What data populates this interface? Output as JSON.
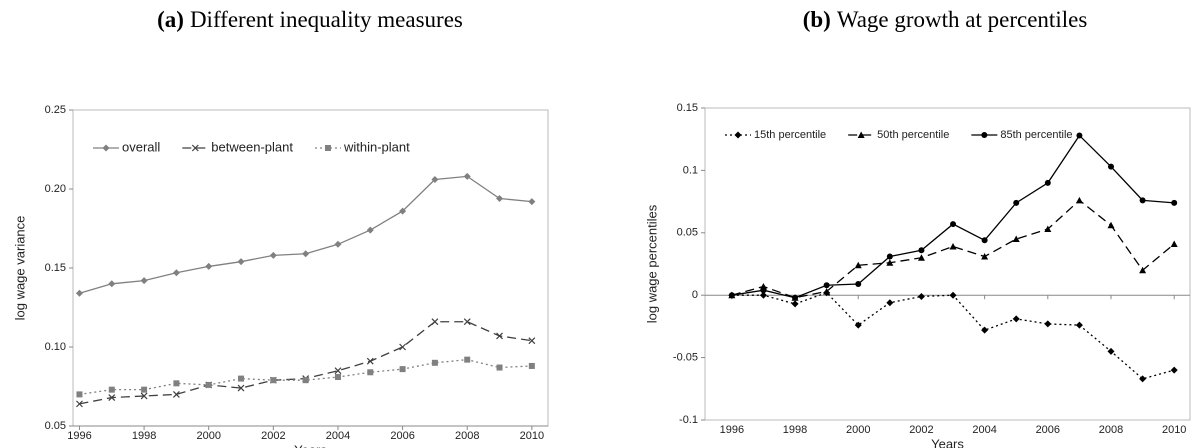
{
  "chart_data": [
    {
      "type": "line",
      "panel_label": "(a)",
      "title": "Different inequality measures",
      "xlabel": "Years",
      "ylabel": "log wage variance",
      "x": [
        1996,
        1997,
        1998,
        1999,
        2000,
        2001,
        2002,
        2003,
        2004,
        2005,
        2006,
        2007,
        2008,
        2009,
        2010
      ],
      "xlim": [
        1995.8,
        2010.5
      ],
      "xticks": [
        1996,
        1998,
        2000,
        2002,
        2004,
        2006,
        2008,
        2010
      ],
      "ylim": [
        0.05,
        0.25
      ],
      "yticks": [
        0.05,
        {
          "value": 0.1,
          "label": "0.10"
        },
        0.15,
        {
          "value": 0.2,
          "label": "0.20"
        },
        0.25
      ],
      "grid": false,
      "series": [
        {
          "name": "overall",
          "color": "#808080",
          "dash": "solid",
          "marker": "diamond",
          "values": [
            0.134,
            0.14,
            0.142,
            0.147,
            0.151,
            0.154,
            0.158,
            0.159,
            0.165,
            0.174,
            0.186,
            0.206,
            0.208,
            0.194,
            0.192
          ]
        },
        {
          "name": "between-plant",
          "color": "#404040",
          "dash": "dashed",
          "marker": "x",
          "values": [
            0.064,
            0.068,
            0.069,
            0.07,
            0.076,
            0.074,
            0.079,
            0.08,
            0.085,
            0.091,
            0.1,
            0.116,
            0.116,
            0.107,
            0.104
          ]
        },
        {
          "name": "within-plant",
          "color": "#808080",
          "dash": "dotted",
          "marker": "square",
          "values": [
            0.07,
            0.073,
            0.073,
            0.077,
            0.076,
            0.08,
            0.079,
            0.079,
            0.081,
            0.084,
            0.086,
            0.09,
            0.092,
            0.087,
            0.088
          ]
        }
      ]
    },
    {
      "type": "line",
      "panel_label": "(b)",
      "title": "Wage growth at percentiles",
      "xlabel": "Years",
      "ylabel": "log wage percentiles",
      "x": [
        1996,
        1997,
        1998,
        1999,
        2000,
        2001,
        2002,
        2003,
        2004,
        2005,
        2006,
        2007,
        2008,
        2009,
        2010
      ],
      "xlim": [
        1995.15,
        2010.5
      ],
      "xticks": [
        1996,
        1998,
        2000,
        2002,
        2004,
        2006,
        2008,
        2010
      ],
      "ylim": [
        -0.1,
        0.15
      ],
      "yticks": [
        -0.1,
        -0.05,
        0,
        0.05,
        0.1,
        0.15
      ],
      "grid": false,
      "series": [
        {
          "name": "15th percentile",
          "color": "#000000",
          "dash": "dotted",
          "marker": "diamond",
          "values": [
            0,
            0,
            -0.007,
            0.002,
            -0.024,
            -0.006,
            -0.001,
            0,
            -0.028,
            -0.019,
            -0.023,
            -0.024,
            -0.045,
            -0.067,
            -0.06
          ]
        },
        {
          "name": "50th percentile",
          "color": "#000000",
          "dash": "dashed",
          "marker": "triangle",
          "values": [
            0,
            0.007,
            -0.002,
            0.003,
            0.024,
            0.026,
            0.03,
            0.039,
            0.031,
            0.045,
            0.053,
            0.076,
            0.056,
            0.02,
            0.041
          ]
        },
        {
          "name": "85th percentile",
          "color": "#000000",
          "dash": "solid",
          "marker": "circle",
          "values": [
            0,
            0.004,
            -0.002,
            0.008,
            0.009,
            0.031,
            0.036,
            0.057,
            0.044,
            0.074,
            0.09,
            0.128,
            0.103,
            0.076,
            0.074
          ]
        }
      ]
    }
  ]
}
